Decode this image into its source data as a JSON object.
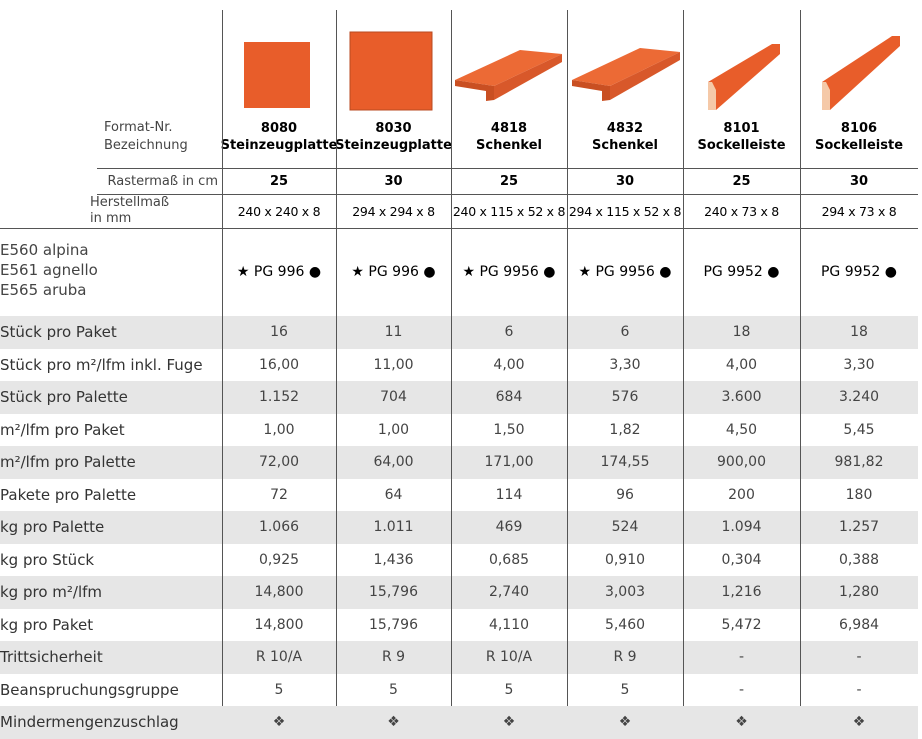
{
  "header": {
    "format_label": "Format-Nr.",
    "name_label": "Bezeichnung",
    "raster_label": "Rastermaß in cm",
    "herstell_label": [
      "Herstellmaß",
      "in mm"
    ]
  },
  "products": [
    {
      "number": "8080",
      "name": "Steinzeugplatte",
      "raster": "25",
      "size": "240 x 240 x 8",
      "code": "★ PG 996 ●"
    },
    {
      "number": "8030",
      "name": "Steinzeugplatte",
      "raster": "30",
      "size": "294 x 294 x 8",
      "code": "★ PG 996 ●"
    },
    {
      "number": "4818",
      "name": "Schenkel",
      "raster": "25",
      "size": "240 x 115 x 52 x 8",
      "code": "★ PG 9956 ●"
    },
    {
      "number": "4832",
      "name": "Schenkel",
      "raster": "30",
      "size": "294 x 115 x 52 x 8",
      "code": "★ PG 9956 ●"
    },
    {
      "number": "8101",
      "name": "Sockelleiste",
      "raster": "25",
      "size": "240 x 73 x 8",
      "code": "PG 9952 ●"
    },
    {
      "number": "8106",
      "name": "Sockelleiste",
      "raster": "30",
      "size": "294 x 73 x 8",
      "code": "PG 9952 ●"
    }
  ],
  "colors": [
    "E560 alpina",
    "E561 agnello",
    "E565 aruba"
  ],
  "rows": [
    {
      "label": "Stück pro Paket",
      "values": [
        "16",
        "11",
        "6",
        "6",
        "18",
        "18"
      ]
    },
    {
      "label": "Stück pro m²/lfm inkl. Fuge",
      "values": [
        "16,00",
        "11,00",
        "4,00",
        "3,30",
        "4,00",
        "3,30"
      ]
    },
    {
      "label": "Stück pro Palette",
      "values": [
        "1.152",
        "704",
        "684",
        "576",
        "3.600",
        "3.240"
      ]
    },
    {
      "label": "m²/lfm pro Paket",
      "values": [
        "1,00",
        "1,00",
        "1,50",
        "1,82",
        "4,50",
        "5,45"
      ]
    },
    {
      "label": "m²/lfm pro Palette",
      "values": [
        "72,00",
        "64,00",
        "171,00",
        "174,55",
        "900,00",
        "981,82"
      ]
    },
    {
      "label": "Pakete pro Palette",
      "values": [
        "72",
        "64",
        "114",
        "96",
        "200",
        "180"
      ]
    },
    {
      "label": "kg pro Palette",
      "values": [
        "1.066",
        "1.011",
        "469",
        "524",
        "1.094",
        "1.257"
      ]
    },
    {
      "label": "kg pro Stück",
      "values": [
        "0,925",
        "1,436",
        "0,685",
        "0,910",
        "0,304",
        "0,388"
      ]
    },
    {
      "label": "kg pro m²/lfm",
      "values": [
        "14,800",
        "15,796",
        "2,740",
        "3,003",
        "1,216",
        "1,280"
      ]
    },
    {
      "label": "kg pro Paket",
      "values": [
        "14,800",
        "15,796",
        "4,110",
        "5,460",
        "5,472",
        "6,984"
      ]
    },
    {
      "label": "Trittsicherheit",
      "values": [
        "R 10/A",
        "R 9",
        "R 10/A",
        "R 9",
        "-",
        "-"
      ]
    },
    {
      "label": "Beanspruchungsgruppe",
      "values": [
        "5",
        "5",
        "5",
        "5",
        "-",
        "-"
      ]
    },
    {
      "label": "Mindermengenzuschlag",
      "values": [
        "❖",
        "❖",
        "❖",
        "❖",
        "❖",
        "❖"
      ]
    }
  ]
}
